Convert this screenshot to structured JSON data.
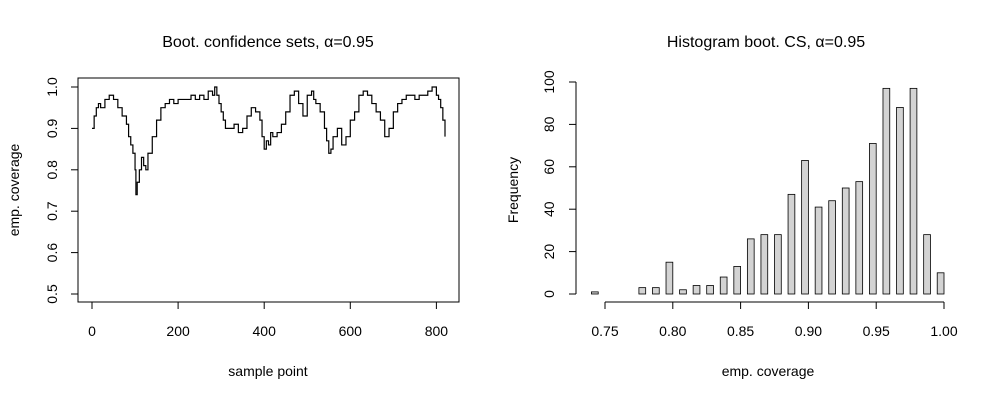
{
  "chart_data": [
    {
      "type": "line",
      "title": "Boot. confidence sets, α=0.95",
      "xlabel": "sample point",
      "ylabel": "emp. coverage",
      "xlim": [
        0,
        820
      ],
      "ylim": [
        0.5,
        1.0
      ],
      "x_ticks": [
        0,
        200,
        400,
        600,
        800
      ],
      "y_ticks": [
        0.5,
        0.6,
        0.7,
        0.8,
        0.9,
        1.0
      ],
      "x_tick_labels": [
        "0",
        "200",
        "400",
        "600",
        "800"
      ],
      "y_tick_labels": [
        "0.5",
        "0.6",
        "0.7",
        "0.8",
        "0.9",
        "1.0"
      ],
      "series": [
        {
          "x": [
            0,
            5,
            10,
            15,
            20,
            30,
            40,
            50,
            60,
            70,
            80,
            85,
            90,
            95,
            100,
            102,
            105,
            110,
            115,
            120,
            125,
            130,
            140,
            150,
            160,
            170,
            180,
            190,
            200,
            210,
            220,
            230,
            240,
            250,
            260,
            270,
            280,
            285,
            290,
            295,
            300,
            305,
            310,
            320,
            330,
            340,
            350,
            360,
            370,
            380,
            390,
            395,
            400,
            405,
            410,
            415,
            420,
            430,
            440,
            450,
            460,
            470,
            480,
            490,
            500,
            510,
            515,
            520,
            530,
            540,
            545,
            550,
            555,
            560,
            570,
            580,
            590,
            600,
            610,
            620,
            630,
            640,
            650,
            660,
            670,
            680,
            690,
            700,
            710,
            720,
            730,
            740,
            750,
            760,
            770,
            780,
            790,
            800,
            805,
            810,
            815,
            820
          ],
          "y": [
            0.9,
            0.93,
            0.95,
            0.96,
            0.95,
            0.97,
            0.98,
            0.97,
            0.95,
            0.93,
            0.91,
            0.88,
            0.86,
            0.84,
            0.8,
            0.74,
            0.77,
            0.8,
            0.83,
            0.81,
            0.8,
            0.84,
            0.88,
            0.92,
            0.95,
            0.96,
            0.97,
            0.96,
            0.97,
            0.97,
            0.97,
            0.98,
            0.97,
            0.98,
            0.97,
            0.99,
            0.98,
            1.0,
            0.98,
            0.96,
            0.94,
            0.92,
            0.9,
            0.9,
            0.91,
            0.89,
            0.9,
            0.93,
            0.95,
            0.94,
            0.92,
            0.88,
            0.85,
            0.87,
            0.86,
            0.89,
            0.88,
            0.89,
            0.91,
            0.94,
            0.98,
            0.99,
            0.96,
            0.93,
            0.98,
            0.99,
            0.97,
            0.96,
            0.94,
            0.9,
            0.87,
            0.84,
            0.85,
            0.88,
            0.9,
            0.86,
            0.88,
            0.92,
            0.94,
            0.98,
            0.99,
            0.98,
            0.96,
            0.94,
            0.92,
            0.88,
            0.9,
            0.94,
            0.96,
            0.97,
            0.98,
            0.98,
            0.97,
            0.98,
            0.98,
            0.99,
            1.0,
            0.98,
            0.97,
            0.95,
            0.92,
            0.88
          ]
        }
      ]
    },
    {
      "type": "bar",
      "title": "Histogram boot. CS, α=0.95",
      "xlabel": "emp. coverage",
      "ylabel": "Frequency",
      "xlim": [
        0.74,
        1.0
      ],
      "ylim": [
        0,
        100
      ],
      "bin_width": 0.005,
      "bin_starts": [
        0.74,
        0.745,
        0.75,
        0.755,
        0.76,
        0.765,
        0.77,
        0.775,
        0.78,
        0.785,
        0.79,
        0.795,
        0.8,
        0.805,
        0.81,
        0.815,
        0.82,
        0.825,
        0.83,
        0.835,
        0.84,
        0.845,
        0.85,
        0.855,
        0.86,
        0.865,
        0.87,
        0.875,
        0.88,
        0.885,
        0.89,
        0.895,
        0.9,
        0.905,
        0.91,
        0.915,
        0.92,
        0.925,
        0.93,
        0.935,
        0.94,
        0.945,
        0.95,
        0.955,
        0.96,
        0.965,
        0.97,
        0.975,
        0.98,
        0.985,
        0.99,
        0.995
      ],
      "values": [
        1,
        0,
        0,
        0,
        0,
        0,
        0,
        3,
        0,
        3,
        0,
        15,
        0,
        2,
        0,
        4,
        0,
        4,
        0,
        8,
        0,
        13,
        0,
        26,
        0,
        28,
        0,
        28,
        0,
        47,
        0,
        63,
        0,
        41,
        0,
        44,
        0,
        50,
        0,
        53,
        0,
        71,
        0,
        97,
        0,
        88,
        0,
        97,
        0,
        28,
        0,
        10
      ],
      "x_ticks": [
        0.75,
        0.8,
        0.85,
        0.9,
        0.95,
        1.0
      ],
      "y_ticks": [
        0,
        20,
        40,
        60,
        80,
        100
      ],
      "x_tick_labels": [
        "0.75",
        "0.80",
        "0.85",
        "0.90",
        "0.95",
        "1.00"
      ],
      "y_tick_labels": [
        "0",
        "20",
        "40",
        "60",
        "80",
        "100"
      ],
      "bar_color": "#d3d3d3"
    }
  ]
}
